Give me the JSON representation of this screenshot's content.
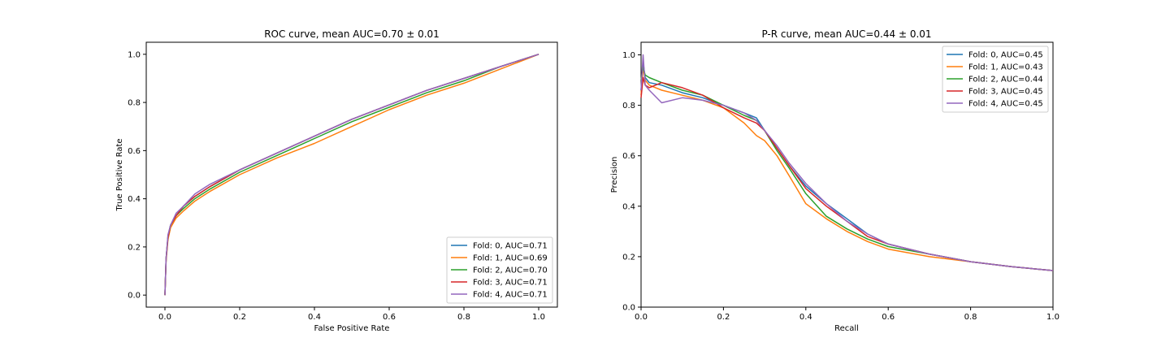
{
  "chart_data": [
    {
      "type": "line",
      "title": "ROC curve, mean AUC=0.70 ± 0.01",
      "xlabel": "False Positive Rate",
      "ylabel": "True Positive Rate",
      "xlim": [
        -0.05,
        1.05
      ],
      "ylim": [
        -0.05,
        1.05
      ],
      "xticks": [
        "0.0",
        "0.2",
        "0.4",
        "0.6",
        "0.8",
        "1.0"
      ],
      "yticks": [
        "0.0",
        "0.2",
        "0.4",
        "0.6",
        "0.8",
        "1.0"
      ],
      "grid": false,
      "legend": "lower-right",
      "series": [
        {
          "name": "Fold: 0, AUC=0.71",
          "color": "#1f77b4",
          "x": [
            0,
            0.003,
            0.008,
            0.015,
            0.03,
            0.05,
            0.08,
            0.12,
            0.2,
            0.3,
            0.4,
            0.5,
            0.6,
            0.7,
            0.8,
            0.9,
            1.0
          ],
          "y": [
            0,
            0.15,
            0.24,
            0.29,
            0.33,
            0.37,
            0.41,
            0.45,
            0.52,
            0.59,
            0.66,
            0.73,
            0.79,
            0.85,
            0.9,
            0.95,
            1.0
          ]
        },
        {
          "name": "Fold: 1, AUC=0.69",
          "color": "#ff7f0e",
          "x": [
            0,
            0.003,
            0.008,
            0.015,
            0.03,
            0.05,
            0.08,
            0.12,
            0.2,
            0.3,
            0.4,
            0.5,
            0.6,
            0.7,
            0.8,
            0.9,
            1.0
          ],
          "y": [
            0,
            0.14,
            0.23,
            0.28,
            0.32,
            0.35,
            0.39,
            0.43,
            0.5,
            0.57,
            0.63,
            0.7,
            0.77,
            0.83,
            0.88,
            0.94,
            1.0
          ]
        },
        {
          "name": "Fold: 2, AUC=0.70",
          "color": "#2ca02c",
          "x": [
            0,
            0.003,
            0.008,
            0.015,
            0.03,
            0.05,
            0.08,
            0.12,
            0.2,
            0.3,
            0.4,
            0.5,
            0.6,
            0.7,
            0.8,
            0.9,
            1.0
          ],
          "y": [
            0,
            0.15,
            0.24,
            0.29,
            0.33,
            0.36,
            0.4,
            0.44,
            0.51,
            0.58,
            0.65,
            0.72,
            0.78,
            0.84,
            0.89,
            0.95,
            1.0
          ]
        },
        {
          "name": "Fold: 3, AUC=0.71",
          "color": "#d62728",
          "x": [
            0,
            0.003,
            0.008,
            0.015,
            0.03,
            0.05,
            0.08,
            0.12,
            0.2,
            0.3,
            0.4,
            0.5,
            0.6,
            0.7,
            0.8,
            0.9,
            1.0
          ],
          "y": [
            0,
            0.15,
            0.24,
            0.29,
            0.33,
            0.37,
            0.41,
            0.45,
            0.52,
            0.59,
            0.66,
            0.73,
            0.79,
            0.85,
            0.9,
            0.95,
            1.0
          ]
        },
        {
          "name": "Fold: 4, AUC=0.71",
          "color": "#9467bd",
          "x": [
            0,
            0.003,
            0.008,
            0.015,
            0.03,
            0.05,
            0.08,
            0.12,
            0.2,
            0.3,
            0.4,
            0.5,
            0.6,
            0.7,
            0.8,
            0.9,
            1.0
          ],
          "y": [
            0,
            0.15,
            0.25,
            0.29,
            0.34,
            0.37,
            0.42,
            0.46,
            0.52,
            0.59,
            0.66,
            0.73,
            0.79,
            0.85,
            0.9,
            0.95,
            1.0
          ]
        }
      ]
    },
    {
      "type": "line",
      "title": "P-R curve, mean AUC=0.44 ± 0.01",
      "xlabel": "Recall",
      "ylabel": "Precision",
      "xlim": [
        0,
        1
      ],
      "ylim": [
        0,
        1.05
      ],
      "xticks": [
        "0.0",
        "0.2",
        "0.4",
        "0.6",
        "0.8",
        "1.0"
      ],
      "yticks": [
        "0.0",
        "0.2",
        "0.4",
        "0.6",
        "0.8",
        "1.0"
      ],
      "grid": false,
      "legend": "upper-right",
      "series": [
        {
          "name": "Fold: 0, AUC=0.45",
          "color": "#1f77b4",
          "x": [
            0,
            0.005,
            0.01,
            0.02,
            0.05,
            0.1,
            0.15,
            0.2,
            0.25,
            0.28,
            0.3,
            0.33,
            0.36,
            0.4,
            0.45,
            0.5,
            0.55,
            0.6,
            0.7,
            0.8,
            0.9,
            1.0
          ],
          "y": [
            0.86,
            0.97,
            0.91,
            0.89,
            0.88,
            0.85,
            0.83,
            0.8,
            0.77,
            0.75,
            0.7,
            0.63,
            0.56,
            0.48,
            0.41,
            0.35,
            0.29,
            0.25,
            0.21,
            0.18,
            0.16,
            0.145
          ]
        },
        {
          "name": "Fold: 1, AUC=0.43",
          "color": "#ff7f0e",
          "x": [
            0,
            0.005,
            0.01,
            0.02,
            0.05,
            0.1,
            0.15,
            0.2,
            0.25,
            0.28,
            0.3,
            0.33,
            0.36,
            0.4,
            0.45,
            0.5,
            0.55,
            0.6,
            0.7,
            0.8,
            0.9,
            1.0
          ],
          "y": [
            0.84,
            0.95,
            0.9,
            0.88,
            0.86,
            0.84,
            0.82,
            0.79,
            0.73,
            0.68,
            0.66,
            0.6,
            0.52,
            0.41,
            0.35,
            0.3,
            0.26,
            0.23,
            0.2,
            0.18,
            0.16,
            0.145
          ]
        },
        {
          "name": "Fold: 2, AUC=0.44",
          "color": "#2ca02c",
          "x": [
            0,
            0.005,
            0.01,
            0.02,
            0.05,
            0.1,
            0.15,
            0.2,
            0.25,
            0.28,
            0.3,
            0.33,
            0.36,
            0.4,
            0.45,
            0.5,
            0.55,
            0.6,
            0.7,
            0.8,
            0.9,
            1.0
          ],
          "y": [
            0.9,
            0.95,
            0.92,
            0.91,
            0.89,
            0.86,
            0.84,
            0.8,
            0.76,
            0.74,
            0.7,
            0.62,
            0.55,
            0.45,
            0.36,
            0.31,
            0.27,
            0.24,
            0.21,
            0.18,
            0.16,
            0.145
          ]
        },
        {
          "name": "Fold: 3, AUC=0.45",
          "color": "#d62728",
          "x": [
            0,
            0.005,
            0.01,
            0.02,
            0.05,
            0.1,
            0.15,
            0.2,
            0.25,
            0.28,
            0.3,
            0.33,
            0.36,
            0.4,
            0.45,
            0.5,
            0.55,
            0.6,
            0.7,
            0.8,
            0.9,
            1.0
          ],
          "y": [
            0.83,
            0.91,
            0.88,
            0.87,
            0.89,
            0.87,
            0.84,
            0.79,
            0.75,
            0.73,
            0.7,
            0.63,
            0.56,
            0.47,
            0.4,
            0.34,
            0.28,
            0.25,
            0.21,
            0.18,
            0.16,
            0.145
          ]
        },
        {
          "name": "Fold: 4, AUC=0.45",
          "color": "#9467bd",
          "x": [
            0,
            0.005,
            0.01,
            0.02,
            0.05,
            0.1,
            0.15,
            0.2,
            0.25,
            0.28,
            0.3,
            0.33,
            0.36,
            0.4,
            0.45,
            0.5,
            0.55,
            0.6,
            0.7,
            0.8,
            0.9,
            1.0
          ],
          "y": [
            0.86,
            1.0,
            0.88,
            0.86,
            0.81,
            0.83,
            0.82,
            0.8,
            0.77,
            0.74,
            0.7,
            0.64,
            0.57,
            0.49,
            0.41,
            0.34,
            0.29,
            0.25,
            0.21,
            0.18,
            0.16,
            0.145
          ]
        }
      ]
    }
  ]
}
